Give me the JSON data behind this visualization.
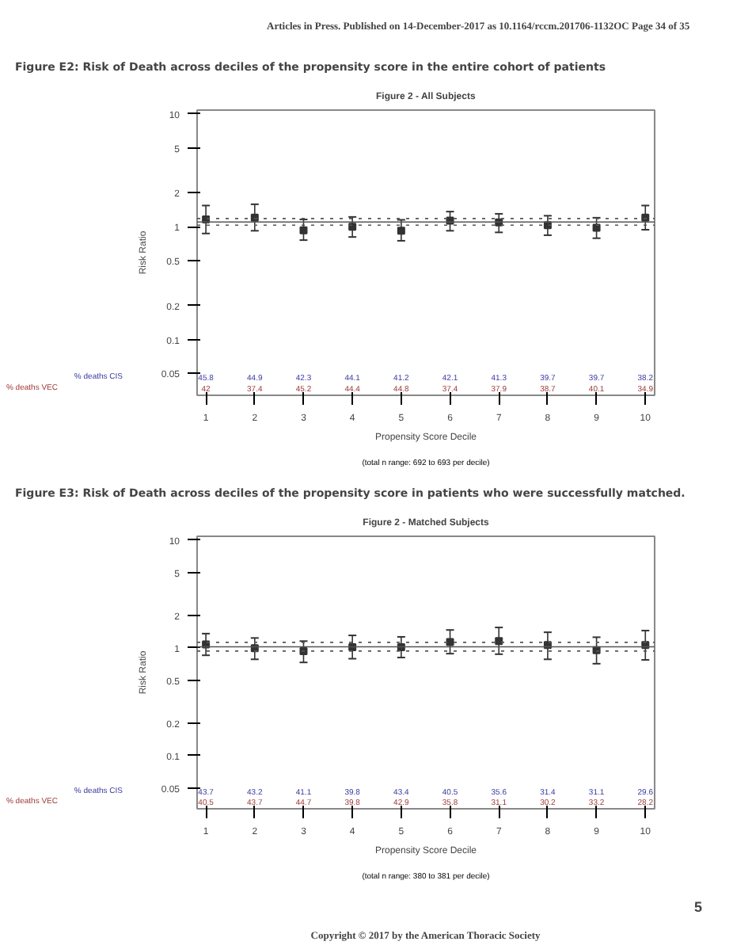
{
  "chart_data": [
    {
      "type": "scatter",
      "title": "Figure 2 - All Subjects",
      "subtitle": "Figure E2: Risk of Death across deciles of the propensity score in the entire cohort of patients",
      "xlabel": "Propensity Score Decile",
      "ylabel": "Risk Ratio",
      "marker": "square",
      "log": "y",
      "grid": false,
      "x": [
        1,
        2,
        3,
        4,
        5,
        6,
        7,
        8,
        9,
        10
      ],
      "xlim": [
        0.82,
        10.19
      ],
      "xticks": [
        1,
        2,
        3,
        4,
        5,
        6,
        7,
        8,
        9,
        10
      ],
      "ylim": [
        0.032,
        10.8
      ],
      "yticks": [
        0.05,
        0.1,
        0.2,
        0.5,
        1,
        2,
        5,
        10
      ],
      "series": [
        {
          "color": "#333333",
          "values": [
            1.16,
            1.2,
            0.93,
            1.0,
            0.92,
            1.13,
            1.09,
            1.03,
            0.98,
            1.2
          ],
          "errors": [
            [
              0.87,
              1.54
            ],
            [
              0.92,
              1.58
            ],
            [
              0.76,
              1.16
            ],
            [
              0.81,
              1.22
            ],
            [
              0.75,
              1.15
            ],
            [
              0.92,
              1.36
            ],
            [
              0.89,
              1.3
            ],
            [
              0.84,
              1.25
            ],
            [
              0.79,
              1.2
            ],
            [
              0.94,
              1.54
            ]
          ]
        }
      ],
      "ref_lines": [
        {
          "axis": "y",
          "value": 1.1,
          "line_style": "solid",
          "color": "#555555"
        },
        {
          "axis": "y",
          "value": 1.18,
          "line_style": "dotted",
          "color": "#555555"
        },
        {
          "axis": "y",
          "value": 1.03,
          "line_style": "dotted",
          "color": "#555555"
        }
      ],
      "annotations": [
        "Articles in Press. Published on 14-December-2017 as 10.1164/rccm.201706-1132OC",
        "Page 34 of 35",
        "% deaths CIS",
        "% deaths VEC",
        "(total n range: 692 to 693 per decile)",
        "45.8",
        "44.9",
        "42.3",
        "44.1",
        "41.2",
        "42.1",
        "41.3",
        "39.7",
        "39.7",
        "38.2",
        "42",
        "37.4",
        "45.2",
        "44.4",
        "44.8",
        "37.4",
        "37.9",
        "38.7",
        "40.1",
        "34.9"
      ]
    },
    {
      "type": "scatter",
      "title": "Figure 2 - Matched Subjects",
      "subtitle": "Figure E3: Risk of Death across deciles of the propensity score in patients who were successfully matched.",
      "xlabel": "Propensity Score Decile",
      "ylabel": "Risk Ratio",
      "marker": "square",
      "log": "y",
      "grid": false,
      "x": [
        1,
        2,
        3,
        4,
        5,
        6,
        7,
        8,
        9,
        10
      ],
      "xlim": [
        0.82,
        10.19
      ],
      "xticks": [
        1,
        2,
        3,
        4,
        5,
        6,
        7,
        8,
        9,
        10
      ],
      "ylim": [
        0.032,
        10.8
      ],
      "yticks": [
        0.05,
        0.1,
        0.2,
        0.5,
        1,
        2,
        5,
        10
      ],
      "series": [
        {
          "color": "#333333",
          "values": [
            1.07,
            0.99,
            0.93,
            1.01,
            1.01,
            1.13,
            1.15,
            1.06,
            0.95,
            1.06
          ],
          "errors": [
            [
              0.85,
              1.35
            ],
            [
              0.78,
              1.23
            ],
            [
              0.73,
              1.15
            ],
            [
              0.79,
              1.3
            ],
            [
              0.81,
              1.26
            ],
            [
              0.88,
              1.46
            ],
            [
              0.87,
              1.54
            ],
            [
              0.78,
              1.39
            ],
            [
              0.71,
              1.25
            ],
            [
              0.77,
              1.44
            ]
          ]
        }
      ],
      "ref_lines": [
        {
          "axis": "y",
          "value": 1.02,
          "line_style": "solid",
          "color": "#555555"
        },
        {
          "axis": "y",
          "value": 1.12,
          "line_style": "dotted",
          "color": "#555555"
        },
        {
          "axis": "y",
          "value": 0.93,
          "line_style": "dotted",
          "color": "#555555"
        }
      ],
      "annotations": [
        "% deaths CIS",
        "% deaths VEC",
        "(total n range: 380 to 381 per decile)",
        "5",
        "Copyright © 2017 by the American Thoracic Society",
        "43.7",
        "43.2",
        "41.1",
        "39.8",
        "43.4",
        "40.5",
        "35.6",
        "31.4",
        "31.1",
        "29.6",
        "40.5",
        "43.7",
        "44.7",
        "39.8",
        "42.9",
        "35.8",
        "31.1",
        "30.2",
        "33.2",
        "28.2"
      ]
    }
  ]
}
